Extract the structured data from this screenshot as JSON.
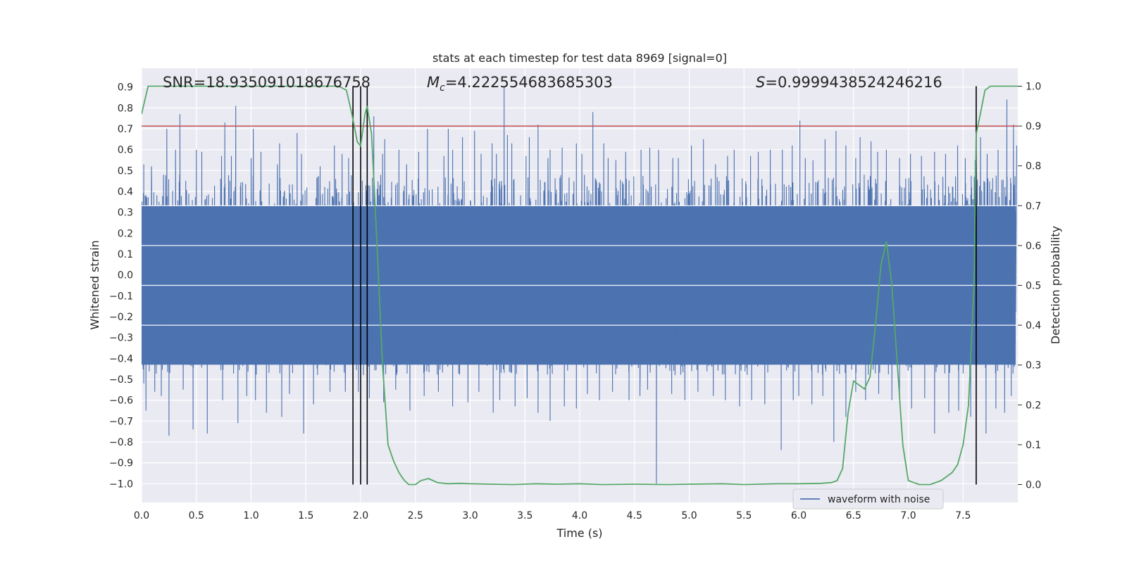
{
  "chart_data": {
    "type": "line",
    "title": "stats at each timestep for test data 8969 [signal=0]",
    "xlabel": "Time (s)",
    "ylabel_left": "Whitened strain",
    "ylabel_right": "Detection probability",
    "xlim": [
      0.0,
      8.0
    ],
    "ylim_left": [
      -1.09,
      0.99
    ],
    "ylim_right": [
      -0.045,
      1.045
    ],
    "x_ticks": [
      "0.0",
      "0.5",
      "1.0",
      "1.5",
      "2.0",
      "2.5",
      "3.0",
      "3.5",
      "4.0",
      "4.5",
      "5.0",
      "5.5",
      "6.0",
      "6.5",
      "7.0",
      "7.5"
    ],
    "x_tick_values": [
      0,
      0.5,
      1,
      1.5,
      2,
      2.5,
      3,
      3.5,
      4,
      4.5,
      5,
      5.5,
      6,
      6.5,
      7,
      7.5
    ],
    "y_left_ticks": [
      "0.9",
      "0.8",
      "0.7",
      "0.6",
      "0.5",
      "0.4",
      "0.3",
      "0.2",
      "0.1",
      "0.0",
      "−0.1",
      "−0.2",
      "−0.3",
      "−0.4",
      "−0.5",
      "−0.6",
      "−0.7",
      "−0.8",
      "−0.9",
      "−1.0"
    ],
    "y_left_tick_values": [
      0.9,
      0.8,
      0.7,
      0.6,
      0.5,
      0.4,
      0.3,
      0.2,
      0.1,
      0.0,
      -0.1,
      -0.2,
      -0.3,
      -0.4,
      -0.5,
      -0.6,
      -0.7,
      -0.8,
      -0.9,
      -1.0
    ],
    "y_right_ticks": [
      "1.0",
      "0.9",
      "0.8",
      "0.7",
      "0.6",
      "0.5",
      "0.4",
      "0.3",
      "0.2",
      "0.1",
      "0.0"
    ],
    "y_right_tick_values": [
      1.0,
      0.9,
      0.8,
      0.7,
      0.6,
      0.5,
      0.4,
      0.3,
      0.2,
      0.1,
      0.0
    ],
    "annotations": {
      "snr": "SNR=18.935091018676758",
      "mc_symbol": "M",
      "mc_sub": "c",
      "mc_value": "=4.222554683685303",
      "s_symbol": "S",
      "s_value": "=0.9999438524246216"
    },
    "legend": {
      "label": "waveform with noise",
      "placement": "lower-right"
    },
    "threshold": {
      "value": 0.9,
      "axis": "right",
      "color": "#c44e52"
    },
    "event_markers_x": [
      1.93,
      2.0,
      2.06,
      7.62
    ],
    "waveform": {
      "name": "waveform with noise",
      "color": "#4c72b0",
      "core_amplitude": 0.32,
      "n_samples": 4000,
      "spikes_up": [
        [
          0.02,
          0.53
        ],
        [
          0.09,
          0.52
        ],
        [
          0.2,
          0.48
        ],
        [
          0.23,
          0.7
        ],
        [
          0.31,
          0.6
        ],
        [
          0.35,
          0.77
        ],
        [
          0.5,
          0.6
        ],
        [
          0.55,
          0.59
        ],
        [
          0.73,
          0.57
        ],
        [
          0.76,
          0.73
        ],
        [
          0.82,
          0.57
        ],
        [
          0.86,
          0.81
        ],
        [
          1.0,
          0.56
        ],
        [
          1.02,
          0.7
        ],
        [
          1.09,
          0.59
        ],
        [
          1.24,
          0.53
        ],
        [
          1.26,
          0.63
        ],
        [
          1.42,
          0.68
        ],
        [
          1.46,
          0.58
        ],
        [
          1.63,
          0.52
        ],
        [
          1.76,
          0.62
        ],
        [
          1.83,
          0.58
        ],
        [
          1.89,
          0.56
        ],
        [
          2.12,
          0.76
        ],
        [
          2.2,
          0.58
        ],
        [
          2.22,
          0.65
        ],
        [
          2.35,
          0.6
        ],
        [
          2.42,
          0.53
        ],
        [
          2.53,
          0.59
        ],
        [
          2.61,
          0.7
        ],
        [
          2.76,
          0.57
        ],
        [
          2.8,
          0.7
        ],
        [
          2.84,
          0.6
        ],
        [
          2.93,
          0.66
        ],
        [
          3.04,
          0.69
        ],
        [
          3.1,
          0.58
        ],
        [
          3.2,
          0.63
        ],
        [
          3.24,
          0.58
        ],
        [
          3.31,
          0.9
        ],
        [
          3.34,
          0.67
        ],
        [
          3.38,
          0.63
        ],
        [
          3.51,
          0.57
        ],
        [
          3.54,
          0.66
        ],
        [
          3.62,
          0.72
        ],
        [
          3.71,
          0.56
        ],
        [
          3.73,
          0.6
        ],
        [
          3.84,
          0.61
        ],
        [
          3.97,
          0.63
        ],
        [
          4.02,
          0.58
        ],
        [
          4.12,
          0.78
        ],
        [
          4.22,
          0.63
        ],
        [
          4.26,
          0.56
        ],
        [
          4.33,
          0.55
        ],
        [
          4.42,
          0.59
        ],
        [
          4.56,
          0.6
        ],
        [
          4.64,
          0.61
        ],
        [
          4.72,
          0.6
        ],
        [
          4.85,
          0.56
        ],
        [
          4.9,
          0.56
        ],
        [
          5.02,
          0.62
        ],
        [
          5.13,
          0.65
        ],
        [
          5.24,
          0.53
        ],
        [
          5.35,
          0.57
        ],
        [
          5.41,
          0.6
        ],
        [
          5.56,
          0.57
        ],
        [
          5.63,
          0.59
        ],
        [
          5.74,
          0.6
        ],
        [
          5.85,
          0.6
        ],
        [
          5.94,
          0.62
        ],
        [
          6.01,
          0.74
        ],
        [
          6.06,
          0.56
        ],
        [
          6.13,
          0.55
        ],
        [
          6.24,
          0.65
        ],
        [
          6.34,
          0.69
        ],
        [
          6.43,
          0.62
        ],
        [
          6.52,
          0.56
        ],
        [
          6.56,
          0.66
        ],
        [
          6.66,
          0.64
        ],
        [
          6.72,
          0.59
        ],
        [
          6.8,
          0.6
        ],
        [
          6.92,
          0.56
        ],
        [
          7.02,
          0.58
        ],
        [
          7.12,
          0.57
        ],
        [
          7.24,
          0.59
        ],
        [
          7.34,
          0.58
        ],
        [
          7.45,
          0.62
        ],
        [
          7.52,
          0.56
        ],
        [
          7.61,
          0.55
        ],
        [
          7.66,
          0.66
        ],
        [
          7.72,
          0.58
        ],
        [
          7.82,
          0.6
        ],
        [
          7.9,
          0.84
        ],
        [
          7.96,
          0.72
        ],
        [
          7.99,
          0.62
        ]
      ],
      "spikes_down": [
        [
          0.02,
          -0.52
        ],
        [
          0.04,
          -0.65
        ],
        [
          0.12,
          -0.56
        ],
        [
          0.18,
          -0.58
        ],
        [
          0.25,
          -0.77
        ],
        [
          0.38,
          -0.55
        ],
        [
          0.47,
          -0.74
        ],
        [
          0.6,
          -0.76
        ],
        [
          0.74,
          -0.6
        ],
        [
          0.88,
          -0.71
        ],
        [
          0.96,
          -0.58
        ],
        [
          1.04,
          -0.6
        ],
        [
          1.14,
          -0.66
        ],
        [
          1.28,
          -0.68
        ],
        [
          1.35,
          -0.57
        ],
        [
          1.48,
          -0.76
        ],
        [
          1.57,
          -0.62
        ],
        [
          1.72,
          -0.56
        ],
        [
          1.86,
          -0.56
        ],
        [
          1.98,
          -0.56
        ],
        [
          2.08,
          -0.59
        ],
        [
          2.21,
          -0.61
        ],
        [
          2.32,
          -0.55
        ],
        [
          2.45,
          -0.65
        ],
        [
          2.58,
          -0.58
        ],
        [
          2.71,
          -0.56
        ],
        [
          2.84,
          -0.63
        ],
        [
          2.98,
          -0.61
        ],
        [
          3.08,
          -0.56
        ],
        [
          3.21,
          -0.66
        ],
        [
          3.27,
          -0.6
        ],
        [
          3.41,
          -0.63
        ],
        [
          3.52,
          -0.59
        ],
        [
          3.62,
          -0.66
        ],
        [
          3.73,
          -0.7
        ],
        [
          3.86,
          -0.63
        ],
        [
          3.97,
          -0.64
        ],
        [
          4.07,
          -0.57
        ],
        [
          4.18,
          -0.6
        ],
        [
          4.3,
          -0.56
        ],
        [
          4.45,
          -0.6
        ],
        [
          4.55,
          -0.58
        ],
        [
          4.62,
          -0.55
        ],
        [
          4.7,
          -1.0
        ],
        [
          4.84,
          -0.57
        ],
        [
          4.96,
          -0.6
        ],
        [
          5.08,
          -0.56
        ],
        [
          5.22,
          -0.58
        ],
        [
          5.33,
          -0.6
        ],
        [
          5.46,
          -0.63
        ],
        [
          5.57,
          -0.6
        ],
        [
          5.69,
          -0.62
        ],
        [
          5.84,
          -0.84
        ],
        [
          5.95,
          -0.6
        ],
        [
          6.0,
          -0.58
        ],
        [
          6.12,
          -0.62
        ],
        [
          6.22,
          -0.58
        ],
        [
          6.32,
          -0.8
        ],
        [
          6.43,
          -0.68
        ],
        [
          6.52,
          -0.56
        ],
        [
          6.61,
          -0.6
        ],
        [
          6.73,
          -0.57
        ],
        [
          6.85,
          -0.6
        ],
        [
          6.92,
          -0.6
        ],
        [
          7.03,
          -0.64
        ],
        [
          7.15,
          -0.59
        ],
        [
          7.24,
          -0.76
        ],
        [
          7.37,
          -0.66
        ],
        [
          7.46,
          -0.65
        ],
        [
          7.57,
          -0.68
        ],
        [
          7.71,
          -0.76
        ],
        [
          7.8,
          -0.64
        ],
        [
          7.88,
          -0.66
        ],
        [
          7.94,
          -0.58
        ]
      ]
    },
    "probability_series": {
      "name": "detection probability",
      "color": "#55a868",
      "x": [
        0.0,
        0.06,
        0.15,
        0.3,
        0.6,
        1.0,
        1.5,
        1.8,
        1.87,
        1.92,
        1.97,
        2.0,
        2.04,
        2.06,
        2.1,
        2.15,
        2.2,
        2.25,
        2.3,
        2.35,
        2.4,
        2.44,
        2.5,
        2.55,
        2.62,
        2.7,
        2.8,
        2.9,
        3.0,
        3.2,
        3.4,
        3.6,
        3.8,
        4.0,
        4.2,
        4.5,
        4.8,
        5.0,
        5.3,
        5.5,
        5.8,
        6.0,
        6.2,
        6.3,
        6.35,
        6.4,
        6.45,
        6.5,
        6.6,
        6.65,
        6.7,
        6.75,
        6.8,
        6.85,
        6.9,
        6.95,
        7.0,
        7.05,
        7.1,
        7.2,
        7.3,
        7.35,
        7.4,
        7.45,
        7.5,
        7.55,
        7.6,
        7.62,
        7.65,
        7.7,
        7.75,
        7.8,
        7.9,
        8.0
      ],
      "y": [
        0.93,
        1.0,
        1.0,
        1.0,
        1.0,
        1.0,
        1.0,
        1.0,
        0.99,
        0.93,
        0.86,
        0.85,
        0.93,
        0.95,
        0.88,
        0.6,
        0.3,
        0.1,
        0.06,
        0.03,
        0.01,
        0.0,
        0.0,
        0.01,
        0.015,
        0.005,
        0.002,
        0.003,
        0.002,
        0.001,
        0.0,
        0.002,
        0.001,
        0.002,
        0.0,
        0.001,
        0.0,
        0.001,
        0.002,
        0.0,
        0.002,
        0.002,
        0.003,
        0.005,
        0.01,
        0.04,
        0.18,
        0.26,
        0.24,
        0.27,
        0.4,
        0.55,
        0.61,
        0.5,
        0.3,
        0.1,
        0.01,
        0.005,
        0.0,
        0.0,
        0.01,
        0.02,
        0.03,
        0.05,
        0.1,
        0.2,
        0.5,
        0.88,
        0.92,
        0.99,
        1.0,
        1.0,
        1.0,
        1.0
      ]
    }
  }
}
